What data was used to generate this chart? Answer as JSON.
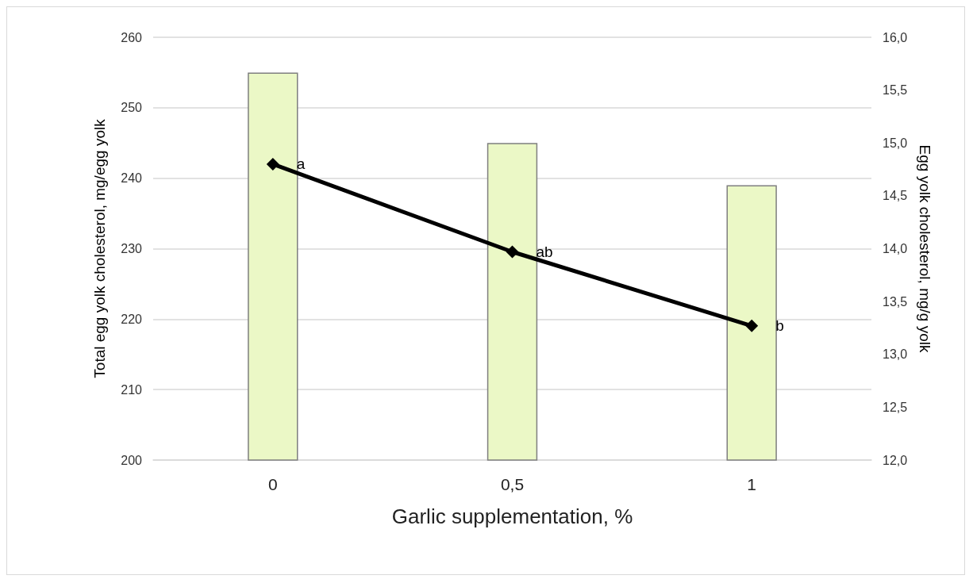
{
  "chart_data": {
    "type": "bar",
    "xlabel": "Garlic supplementation, %",
    "ylabel": "Total egg yolk cholesterol, mg/egg yolk",
    "y2label": "Egg yolk cholesterol, mg/g yolk",
    "categories": [
      "0",
      "0,5",
      "1"
    ],
    "series": [
      {
        "color": "#ebf8c6",
        "values": [
          255,
          245,
          239
        ]
      },
      {
        "type": "line",
        "axis": "y2",
        "color": "#000000",
        "marker": "diamond",
        "line_style": "solid",
        "values": [
          14.8,
          13.97,
          13.27
        ],
        "value_labels": [
          "a",
          "ab",
          "b"
        ]
      }
    ],
    "ylim": [
      200,
      260
    ],
    "yticks": [
      200,
      210,
      220,
      230,
      240,
      250,
      260
    ],
    "y2lim": [
      12,
      16
    ],
    "y2ticks": [
      {
        "value": 12,
        "label": "12,0"
      },
      {
        "value": 12.5,
        "label": "12,5"
      },
      {
        "value": 13,
        "label": "13,0"
      },
      {
        "value": 13.5,
        "label": "13,5"
      },
      {
        "value": 14,
        "label": "14,0"
      },
      {
        "value": 14.5,
        "label": "14,5"
      },
      {
        "value": 15,
        "label": "15,0"
      },
      {
        "value": 15.5,
        "label": "15,5"
      },
      {
        "value": 16,
        "label": "16,0"
      }
    ],
    "grid": "y"
  }
}
